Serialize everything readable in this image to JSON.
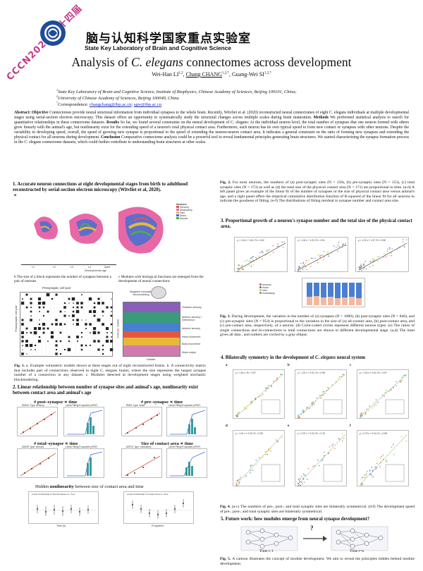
{
  "header": {
    "stamp_text": "CCCN2020 第十四届",
    "institute_cn": "脑与认知科学国家重点实验室",
    "institute_en": "State Key Laboratory of Brain and Cognitive Science",
    "title_prefix": "Analysis of ",
    "title_species": "C. elegans",
    "title_suffix": " connectomes across development",
    "authors": {
      "a1": "Wei-Han LI",
      "a1_sup": "1,2",
      "a2": "Chang CHANG",
      "a2_sup": "1,2,*",
      "a3": "Guang-Wei SI",
      "a3_sup": "1,2,*"
    },
    "affil1_sup": "1",
    "affil1": "State Key Laboratory of Brain and Cognitive Science, Institute of Biophysics, Chinese Academy of Sciences, Beijing 100101, China;",
    "affil2_sup": "2",
    "affil2": "University of Chinese Academy of Sciences, Beijing 100049, China",
    "corr_sup": "*",
    "corr_label": "Correspondence: ",
    "email1": "changchang@ibp.ac.cn",
    "email2": "sgw@ibp.ac.cn"
  },
  "abstract": {
    "label": "Abstract: ",
    "objective_label": "Objective",
    "objective_text": " Connectomes provide neural structural information from individual synapses to the whole brain. Recently, Witvliet et al. (2020) reconstructed neural connectomes of eight C. elegans individuals at multiple developmental stages using serial-section electron microscopy. This dataset offers an opportunity to systematically study the structural changes across multiple scales during brain maturation.",
    "methods_label": "Methods",
    "methods_text": " We performed statistical analysis to search for quantitative relationships in these connectome datasets.",
    "results_label": "Results",
    "results_text": " So far, we found several constraints on the neural development of C. elegans: At the individual neuron level, the total number of synapses that one neuron formed with others grow linearly with the animal's age, but nonlinearity exist for the extending speed of a neuron's total physical contact area. Furthermore, each neuron has its own typical speed to form new contact or synapses with other neurons. Despite the variability in developing speed, overall, the speed of growing new synapse is proportional to the speed of extending the neuron-neuron contact area. It indicates a general constraint on the ratio of forming new synapses and extending the physical contact for all neurons during development.",
    "conclusion_label": "Conclusion",
    "conclusion_text": " Comparative connectome analysis could be a powerful tool to reveal fundamental principles generating brain structures. We started characterizing the synapse formation process in the C. elegans connectome datasets, which could further contribute to understanding brain structures at other scales."
  },
  "section1": {
    "title": "1.  Accurate neuron connections at eight developmental stages from birth to adulthood reconstructed by serial-section electron microscopy (Witvliet et al, 2020).",
    "panel_a": "a",
    "legend": [
      "Neurons",
      "Sensory",
      "Modulatory",
      "Inter",
      "Motor",
      "Muscle"
    ],
    "axis_ticks": [
      "L1",
      "L2",
      "L3",
      "L4",
      "Adult"
    ],
    "axis_label": "Developmental age",
    "panel_b": "b The size of a block represents the number of synapses between a pair of neurons",
    "panel_b_title": "Presynaptic cell pair",
    "panel_b_ylabel": "Postsynaptic cell pair",
    "panel_c": "c Modules with biological functions are emerged from the development of neural connections",
    "panel_c_header": "Weighted stochastic blockmodeling",
    "panel_c_ylabel": "Cells per module",
    "panel_c_xlabel": "Dataset",
    "modules": [
      "Posterior sensory",
      "Anterior sensory / Interneuron",
      "Anterior sensory",
      "Head movement",
      "Body movement",
      "Motor output"
    ],
    "caption_label": "Fig. 1. ",
    "caption": "a. Example volumetric models shown at three stages out of eight reconstructed brains. b. A connectivity matrix that includes part of connections observed in eight C. elegans brains, where the size represents the largest synapse number of a connection in any dataset. c. Modules detected at development stages using weighted stochastic blockmodeling."
  },
  "section2": {
    "title": "2.  Linear relationship between number of synapse sites and animal's age, nonlinearity exist between contact area and animal's age",
    "row1_left": "# post–synapse ∝ time",
    "row1_right": "# pre–synapse ∝ time",
    "row2_left": "# total–synapse ∝ time",
    "row2_right": "Size of contact area ∝ time",
    "plot_labels": [
      "SMDVL Type: sensory",
      "Linear Fitting R-squared (ePDF)",
      "RMEL Type: motor",
      "Linear Fitting R-squared (ePDF)",
      "AIMOR Type: sensory",
      "Linear Fitting R-squared (ePDF)",
      "ADFRL Type: modulatory",
      "Linear Fitting R-squared (ePDF)"
    ],
    "hidden_label_prefix": "Hidden ",
    "hidden_label_bold": "nonlinearity",
    "hidden_label_suffix": " between size of contact area and time",
    "bottom_plot1": "Linear Fit Residual of Total Synapses vs. Time",
    "bottom_plot2": "Linear Fit Residual of Contact Area vs. Time",
    "x_label": "Time (h)",
    "r_label": "R-squared"
  },
  "fig2": {
    "caption_label": "Fig. 2. ",
    "caption": "For most neurons, the numbers of (a) post-synaptic sites (N = 158), (b) pre-synaptic sites (N = 153), (c) total synaptic sites (N = 173) as well as (d) the total size of the physical contact area (N = 171) are proportional to time. (a-d) A left panel gives an example of the linear fit of the number of synapses or the size of physical contact area versus animal's age, and a right panel offers the empirical cumulative distribution function of R-squared of the linear fit for all neurons to indicate the goodness of fitting. (e-f) The distributions of fitting residual to synapse number and contact area size."
  },
  "section3": {
    "title": "3.  Proportional growth of a neuron's synapse number and the total size of the physical contact area.",
    "fits": [
      "y = 1.16 x + 2.61, R² = 0.62",
      "y = 1.04 x + 1.02, R² = 0.51",
      "y = 1.22 x + 1.37, R² = 0.56"
    ],
    "legend": [
      "sensory",
      "motor",
      "inter",
      "modulatory"
    ],
    "caption_label": "Fig. 3. ",
    "caption": "During development, the variation in the number of (a) synapses (N = 1080), (b) post-synaptic sites (N = 840), and (c) pre-synaptic sites (N = 954) is proportional to the variation in the size of (a) all-contact area, (b) post-contact area, and (c) pre-contact area, respectively, of a neuron. (d) Color-coded circles represent different neuron types. (e) The ratios of single connections and bi-connections to total connections are shown in different developmental stage. (a,d) The inset gives all data , and outliers are circled by a gray ellipse."
  },
  "section4": {
    "title_prefix": "4.  Bilaterally symmetry in the development of ",
    "title_species": "C. elegans",
    "title_suffix": " neural system",
    "fits_top": [
      "y = 1.04 x, R² = 0.97",
      "y = 1.01 x + 0.01, R² = 0.98",
      "y = 1.02 x + 0.01, R² = 0.97"
    ],
    "fits_bottom": [
      "y = 1.01 x + 0.00, R² = 0.95",
      "y = 0.97 x + 0.02, R² = 0.78",
      "y = 0.79 x + 0.04, R² = 0.58"
    ],
    "panels": [
      "a",
      "b",
      "c",
      "d",
      "e",
      "f"
    ],
    "caption_label": "Fig. 4. ",
    "caption": "(a-c) The numbers of pre-, post-, and total synaptic sites are bilaterally symmetrical. (d-f) The development speed of pre-, post-, and total synaptic sites are bilaterally symmetrical."
  },
  "section5": {
    "title": "5.  Future work: how modules emerge from neural synapse development?",
    "time1": "Time t–1",
    "time2": "Time t=n",
    "q_mark": "?",
    "caption_label": "Fig. 5. ",
    "caption": "A cartoon illustrates the concept of module development. We aim to reveal the principles hidden behind module development."
  },
  "colors": {
    "sensory": "#e4573f",
    "motor": "#3a6fd6",
    "inter": "#e8b83a",
    "modulatory": "#53a653",
    "worm_pink": "#e868a6",
    "link": "#1b2fb8",
    "logo_blue": "#1e4c9a"
  }
}
